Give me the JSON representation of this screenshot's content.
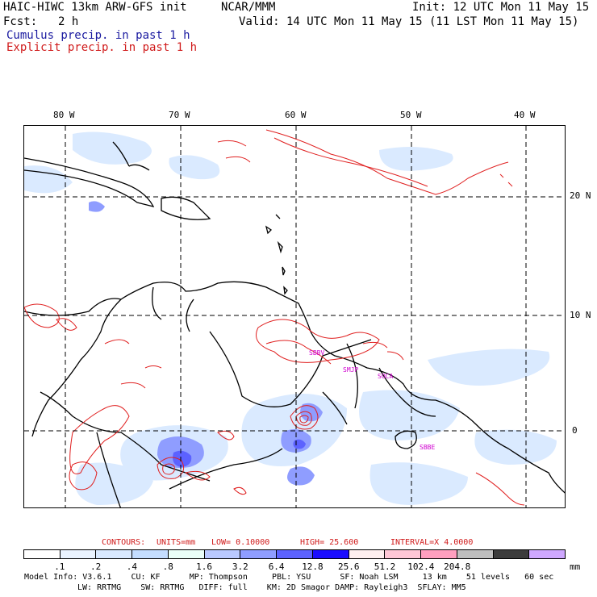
{
  "header": {
    "line1_left": "HAIC-HIWC 13km ARW-GFS init",
    "line1_mid": "NCAR/MMM",
    "line1_right": "Init: 12 UTC Mon 11 May 15",
    "fcst_label": "Fcst:",
    "fcst_value": "2 h",
    "valid": "Valid: 14 UTC Mon 11 May 15 (11 LST Mon 11 May 15)",
    "cumulus": "Cumulus precip. in past 1 h",
    "explicit": "Explicit precip. in past 1 h"
  },
  "map": {
    "lon_labels": [
      "80 W",
      "70 W",
      "60 W",
      "50 W",
      "40 W"
    ],
    "lat_labels": [
      "20 N",
      "10 N",
      "0"
    ],
    "stations": [
      "SBBV",
      "SMJP",
      "SOCA",
      "SBBE"
    ]
  },
  "contours": {
    "label": "CONTOURS:",
    "units": "UNITS=mm",
    "low": "LOW= 0.10000",
    "high": "HIGH= 25.600",
    "interval": "INTERVAL=X 4.0000"
  },
  "colorbar": {
    "colors": [
      "#ffffff",
      "#eaf3ff",
      "#d9e9ff",
      "#c4ddff",
      "#eafff8",
      "#b9c9ff",
      "#8f9dff",
      "#5c62ff",
      "#1a0dff",
      "#fff0f0",
      "#ffc7d6",
      "#ff9fbf",
      "#bfbfbf",
      "#3c3c3c",
      "#cfa8ff"
    ],
    "ticks": [
      ".1",
      ".2",
      ".4",
      ".8",
      "1.6",
      "3.2",
      "6.4",
      "12.8",
      "25.6",
      "51.2",
      "102.4",
      "204.8"
    ],
    "unit": "mm"
  },
  "model_info": {
    "line1": "Model Info: V3.6.1    CU: KF      MP: Thompson     PBL: YSU      SF: Noah LSM     13 km    51 levels   60 sec",
    "line2": "LW: RRTMG    SW: RRTMG   DIFF: full    KM: 2D Smagor DAMP: Rayleigh3  SFLAY: MM5"
  }
}
